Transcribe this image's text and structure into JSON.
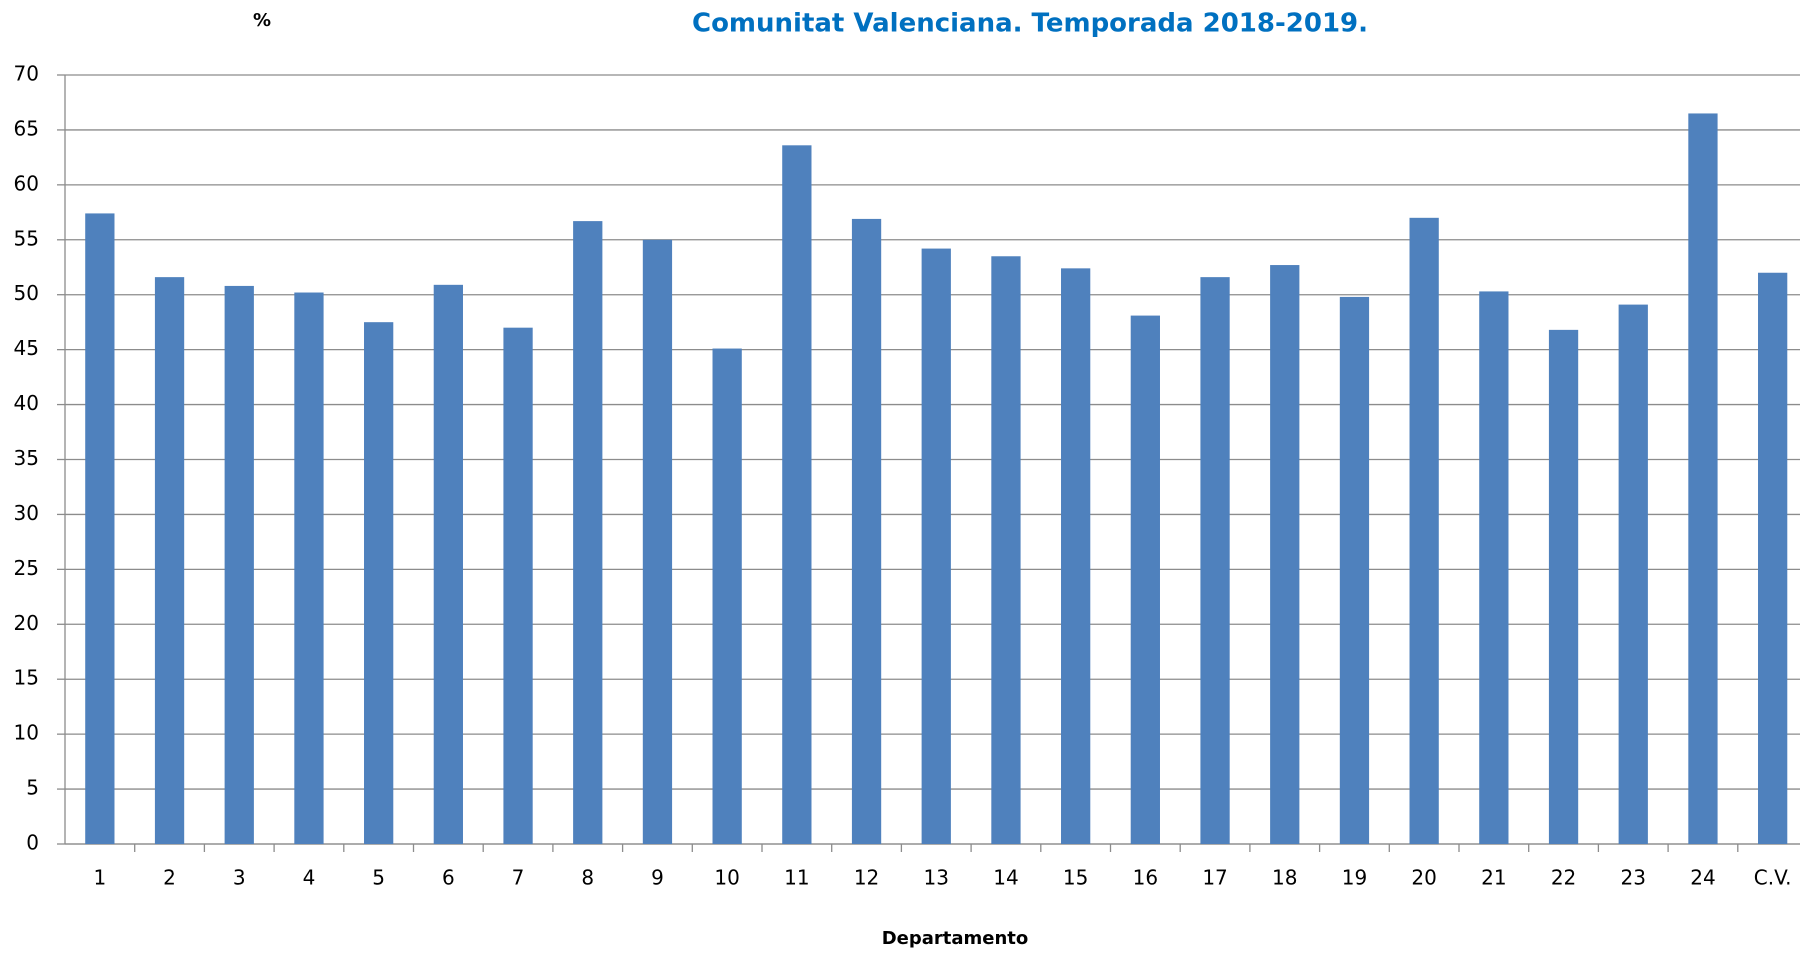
{
  "chart_data": {
    "type": "bar",
    "title": "Comunitat Valenciana. Temporada 2018-2019.",
    "y_label": "%",
    "x_label": "Departamento",
    "categories": [
      "1",
      "2",
      "3",
      "4",
      "5",
      "6",
      "7",
      "8",
      "9",
      "10",
      "11",
      "12",
      "13",
      "14",
      "15",
      "16",
      "17",
      "18",
      "19",
      "20",
      "21",
      "22",
      "23",
      "24",
      "C.V."
    ],
    "values": [
      57.4,
      51.6,
      50.8,
      50.2,
      47.5,
      50.9,
      47.0,
      56.7,
      55.0,
      45.1,
      63.6,
      56.9,
      54.2,
      53.5,
      52.4,
      48.1,
      51.6,
      52.7,
      49.8,
      57.0,
      50.3,
      46.8,
      49.1,
      66.5,
      52.0
    ],
    "color": "#4f81bd",
    "ylim": [
      0,
      70
    ],
    "yticks": [
      0,
      5,
      10,
      15,
      20,
      25,
      30,
      35,
      40,
      45,
      50,
      55,
      60,
      65,
      70
    ],
    "grid": true
  }
}
